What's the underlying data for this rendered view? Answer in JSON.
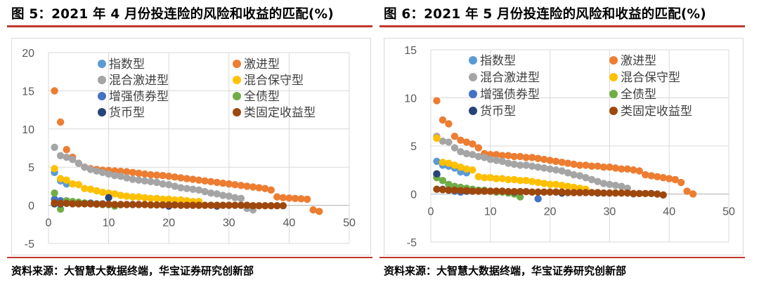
{
  "colors": {
    "title_rule": "#c0392b",
    "gridline": "#d9d9d9"
  },
  "chart_data": [
    {
      "type": "scatter",
      "title": "图 5：2021 年 4 月份投连险的风险和收益的匹配(%)",
      "source": "资料来源：大智慧大数据终端，华宝证券研究创新部",
      "xlabel": "",
      "ylabel": "",
      "xlim": [
        0,
        50
      ],
      "ylim": [
        -5,
        20
      ],
      "xticks": [
        "0",
        "10",
        "20",
        "30",
        "40",
        "50"
      ],
      "yticks": [
        "20",
        "15",
        "10",
        "5",
        "0",
        "-5"
      ],
      "legend_position": "top-left",
      "series": [
        {
          "name": "指数型",
          "color": "#5b9bd5",
          "x": [
            1,
            2,
            3
          ],
          "y": [
            4.3,
            3.2,
            2.8
          ]
        },
        {
          "name": "激进型",
          "color": "#ed7d31",
          "x": [
            1,
            2,
            3,
            4,
            5,
            6,
            7,
            8,
            9,
            10,
            11,
            12,
            13,
            14,
            15,
            16,
            17,
            18,
            19,
            20,
            21,
            22,
            23,
            24,
            25,
            26,
            27,
            28,
            29,
            30,
            31,
            32,
            33,
            34,
            35,
            36,
            37,
            38,
            39,
            40,
            41,
            42,
            43,
            44,
            45
          ],
          "y": [
            15.0,
            10.9,
            7.3,
            6.3,
            5.5,
            5.0,
            4.8,
            4.7,
            4.6,
            4.55,
            4.5,
            4.45,
            4.4,
            4.3,
            4.2,
            4.1,
            4.0,
            3.95,
            3.9,
            3.8,
            3.7,
            3.6,
            3.5,
            3.4,
            3.3,
            3.2,
            3.1,
            3.0,
            2.9,
            2.8,
            2.7,
            2.6,
            2.5,
            2.4,
            2.3,
            2.2,
            2.0,
            1.1,
            1.0,
            0.95,
            0.9,
            0.85,
            0.8,
            -0.6,
            -0.8
          ]
        },
        {
          "name": "混合激进型",
          "color": "#a5a5a5",
          "x": [
            1,
            2,
            3,
            4,
            5,
            6,
            7,
            8,
            9,
            10,
            11,
            12,
            13,
            14,
            15,
            16,
            17,
            18,
            19,
            20,
            21,
            22,
            23,
            24,
            25,
            26,
            27,
            28,
            29,
            30,
            31,
            32,
            33,
            34
          ],
          "y": [
            7.6,
            6.5,
            6.3,
            6.0,
            5.5,
            5.0,
            4.7,
            4.5,
            4.3,
            4.1,
            3.9,
            3.8,
            3.6,
            3.4,
            3.3,
            3.2,
            3.1,
            3.0,
            2.8,
            2.7,
            2.5,
            2.3,
            2.2,
            2.1,
            2.0,
            1.8,
            1.6,
            1.5,
            1.3,
            1.2,
            1.0,
            0.9,
            -0.4,
            -0.6
          ]
        },
        {
          "name": "混合保守型",
          "color": "#ffc000",
          "x": [
            1,
            2,
            3,
            4,
            5,
            6,
            7,
            8,
            9,
            10,
            11,
            12,
            13,
            14,
            15,
            16,
            17,
            18,
            19,
            20,
            21,
            22,
            23,
            24,
            25
          ],
          "y": [
            4.8,
            3.5,
            3.3,
            2.8,
            2.7,
            2.2,
            2.1,
            1.9,
            1.7,
            1.6,
            1.5,
            1.3,
            1.2,
            1.1,
            1.1,
            1.0,
            0.9,
            0.9,
            0.8,
            0.8,
            0.7,
            0.7,
            0.6,
            0.5,
            0.5
          ]
        },
        {
          "name": "增强债券型",
          "color": "#4472c4",
          "x": [
            1,
            2,
            3,
            4,
            5,
            6,
            7,
            8,
            9,
            10
          ],
          "y": [
            0.8,
            0.6,
            0.5,
            0.4,
            0.4,
            0.3,
            0.3,
            0.2,
            0.2,
            0.1
          ]
        },
        {
          "name": "全债型",
          "color": "#70ad47",
          "x": [
            1,
            2,
            3,
            4,
            5,
            6,
            7,
            8,
            9,
            10,
            11,
            12
          ],
          "y": [
            1.6,
            -0.5,
            0.6,
            0.5,
            0.4,
            0.3,
            0.2,
            0.2,
            0.1,
            0.1,
            -0.1,
            0.1
          ]
        },
        {
          "name": "货币型",
          "color": "#264478",
          "x": [
            1,
            2,
            10,
            20,
            28
          ],
          "y": [
            0.2,
            0.2,
            1.0,
            -0.1,
            -0.1
          ]
        },
        {
          "name": "类固定收益型",
          "color": "#9e480e",
          "x": [
            1,
            2,
            3,
            4,
            5,
            6,
            7,
            8,
            9,
            10,
            11,
            12,
            13,
            14,
            15,
            16,
            17,
            18,
            19,
            20,
            21,
            22,
            23,
            24,
            25,
            26,
            27,
            28,
            29,
            30,
            31,
            32,
            33,
            34,
            35,
            36,
            37,
            38,
            39
          ],
          "y": [
            0.3,
            0.25,
            0.25,
            0.2,
            0.2,
            0.2,
            0.2,
            0.15,
            0.15,
            0.15,
            0.1,
            0.1,
            0.1,
            0.1,
            0.1,
            0.1,
            0.05,
            0.05,
            0.05,
            0.05,
            0.05,
            0.0,
            0.0,
            0.0,
            0.0,
            0.0,
            0.0,
            0.0,
            0.0,
            0.0,
            0.0,
            0.0,
            0.0,
            -0.05,
            -0.05,
            -0.05,
            -0.05,
            -0.05,
            -0.05
          ]
        }
      ]
    },
    {
      "type": "scatter",
      "title": "图 6：2021 年 5 月份投连险的风险和收益的匹配(%)",
      "source": "资料来源：大智慧大数据终端，华宝证券研究创新部",
      "xlabel": "",
      "ylabel": "",
      "xlim": [
        0,
        50
      ],
      "ylim": [
        -5,
        15
      ],
      "xticks": [
        "0",
        "10",
        "20",
        "30",
        "40",
        "50"
      ],
      "yticks": [
        "15",
        "10",
        "5",
        "0",
        "-5"
      ],
      "legend_position": "top-left",
      "series": [
        {
          "name": "指数型",
          "color": "#5b9bd5",
          "x": [
            1,
            2,
            3,
            4,
            5,
            6
          ],
          "y": [
            3.4,
            3.0,
            2.9,
            2.7,
            2.3,
            2.2
          ]
        },
        {
          "name": "激进型",
          "color": "#ed7d31",
          "x": [
            1,
            2,
            3,
            4,
            5,
            6,
            7,
            8,
            9,
            10,
            11,
            12,
            13,
            14,
            15,
            16,
            17,
            18,
            19,
            20,
            21,
            22,
            23,
            24,
            25,
            26,
            27,
            28,
            29,
            30,
            31,
            32,
            33,
            34,
            35,
            36,
            37,
            38,
            39,
            40,
            41,
            42,
            43,
            44
          ],
          "y": [
            9.7,
            7.7,
            7.3,
            6.0,
            5.6,
            5.4,
            5.2,
            4.8,
            4.2,
            4.1,
            4.1,
            4.0,
            4.0,
            3.9,
            3.9,
            3.8,
            3.8,
            3.7,
            3.6,
            3.5,
            3.4,
            3.3,
            3.2,
            3.1,
            3.0,
            3.0,
            2.9,
            2.9,
            2.8,
            2.8,
            2.7,
            2.6,
            2.6,
            2.5,
            2.4,
            2.0,
            1.9,
            1.8,
            1.7,
            1.6,
            1.5,
            1.2,
            0.3,
            0.0
          ]
        },
        {
          "name": "混合激进型",
          "color": "#a5a5a5",
          "x": [
            1,
            2,
            3,
            4,
            5,
            6,
            7,
            8,
            9,
            10,
            11,
            12,
            13,
            14,
            15,
            16,
            17,
            18,
            19,
            20,
            21,
            22,
            23,
            24,
            25,
            26,
            27,
            28,
            29,
            30,
            31,
            32,
            33,
            34
          ],
          "y": [
            6.0,
            5.5,
            5.4,
            4.8,
            4.4,
            4.2,
            4.1,
            3.9,
            3.8,
            3.6,
            3.5,
            3.4,
            3.2,
            3.1,
            3.0,
            3.0,
            2.9,
            2.8,
            2.7,
            2.6,
            2.5,
            2.4,
            2.2,
            2.0,
            1.9,
            1.7,
            1.5,
            1.3,
            1.1,
            1.0,
            0.9,
            0.8,
            0.6,
            0.0
          ]
        },
        {
          "name": "混合保守型",
          "color": "#ffc000",
          "x": [
            1,
            2,
            3,
            4,
            5,
            6,
            7,
            8,
            9,
            10,
            11,
            12,
            13,
            14,
            15,
            16,
            17,
            18,
            19,
            20,
            21,
            22,
            23,
            24,
            25,
            26
          ],
          "y": [
            5.8,
            3.3,
            3.2,
            3.0,
            2.8,
            2.6,
            2.5,
            1.8,
            1.7,
            1.7,
            1.6,
            1.6,
            1.5,
            1.5,
            1.4,
            1.4,
            1.3,
            1.2,
            1.1,
            1.0,
            1.0,
            0.9,
            0.8,
            0.7,
            0.6,
            0.5
          ]
        },
        {
          "name": "增强债券型",
          "color": "#4472c4",
          "x": [
            1,
            2,
            3,
            4,
            5,
            18
          ],
          "y": [
            2.0,
            0.5,
            0.4,
            0.3,
            0.2,
            -0.5
          ]
        },
        {
          "name": "全债型",
          "color": "#70ad47",
          "x": [
            1,
            2,
            3,
            4,
            5,
            6,
            7,
            8,
            9,
            10,
            11,
            12,
            13,
            14,
            15
          ],
          "y": [
            1.7,
            1.4,
            1.0,
            0.8,
            0.7,
            0.6,
            0.5,
            0.4,
            0.4,
            0.3,
            0.2,
            0.2,
            0.1,
            0.0,
            -0.3
          ]
        },
        {
          "name": "货币型",
          "color": "#264478",
          "x": [
            1,
            6,
            14,
            22,
            28
          ],
          "y": [
            2.1,
            0.3,
            0.2,
            0.1,
            0.1
          ]
        },
        {
          "name": "类固定收益型",
          "color": "#9e480e",
          "x": [
            1,
            2,
            3,
            4,
            5,
            6,
            7,
            8,
            9,
            10,
            11,
            12,
            13,
            14,
            15,
            16,
            17,
            18,
            19,
            20,
            21,
            22,
            23,
            24,
            25,
            26,
            27,
            28,
            29,
            30,
            31,
            32,
            33,
            34,
            35,
            36,
            37,
            38,
            39
          ],
          "y": [
            0.5,
            0.45,
            0.4,
            0.4,
            0.35,
            0.35,
            0.3,
            0.3,
            0.3,
            0.3,
            0.3,
            0.3,
            0.25,
            0.25,
            0.25,
            0.25,
            0.2,
            0.2,
            0.2,
            0.2,
            0.2,
            0.2,
            0.15,
            0.15,
            0.15,
            0.15,
            0.15,
            0.15,
            0.1,
            0.1,
            0.1,
            0.1,
            0.1,
            0.05,
            0.05,
            0.05,
            0.05,
            0.0,
            -0.1
          ]
        }
      ]
    }
  ]
}
